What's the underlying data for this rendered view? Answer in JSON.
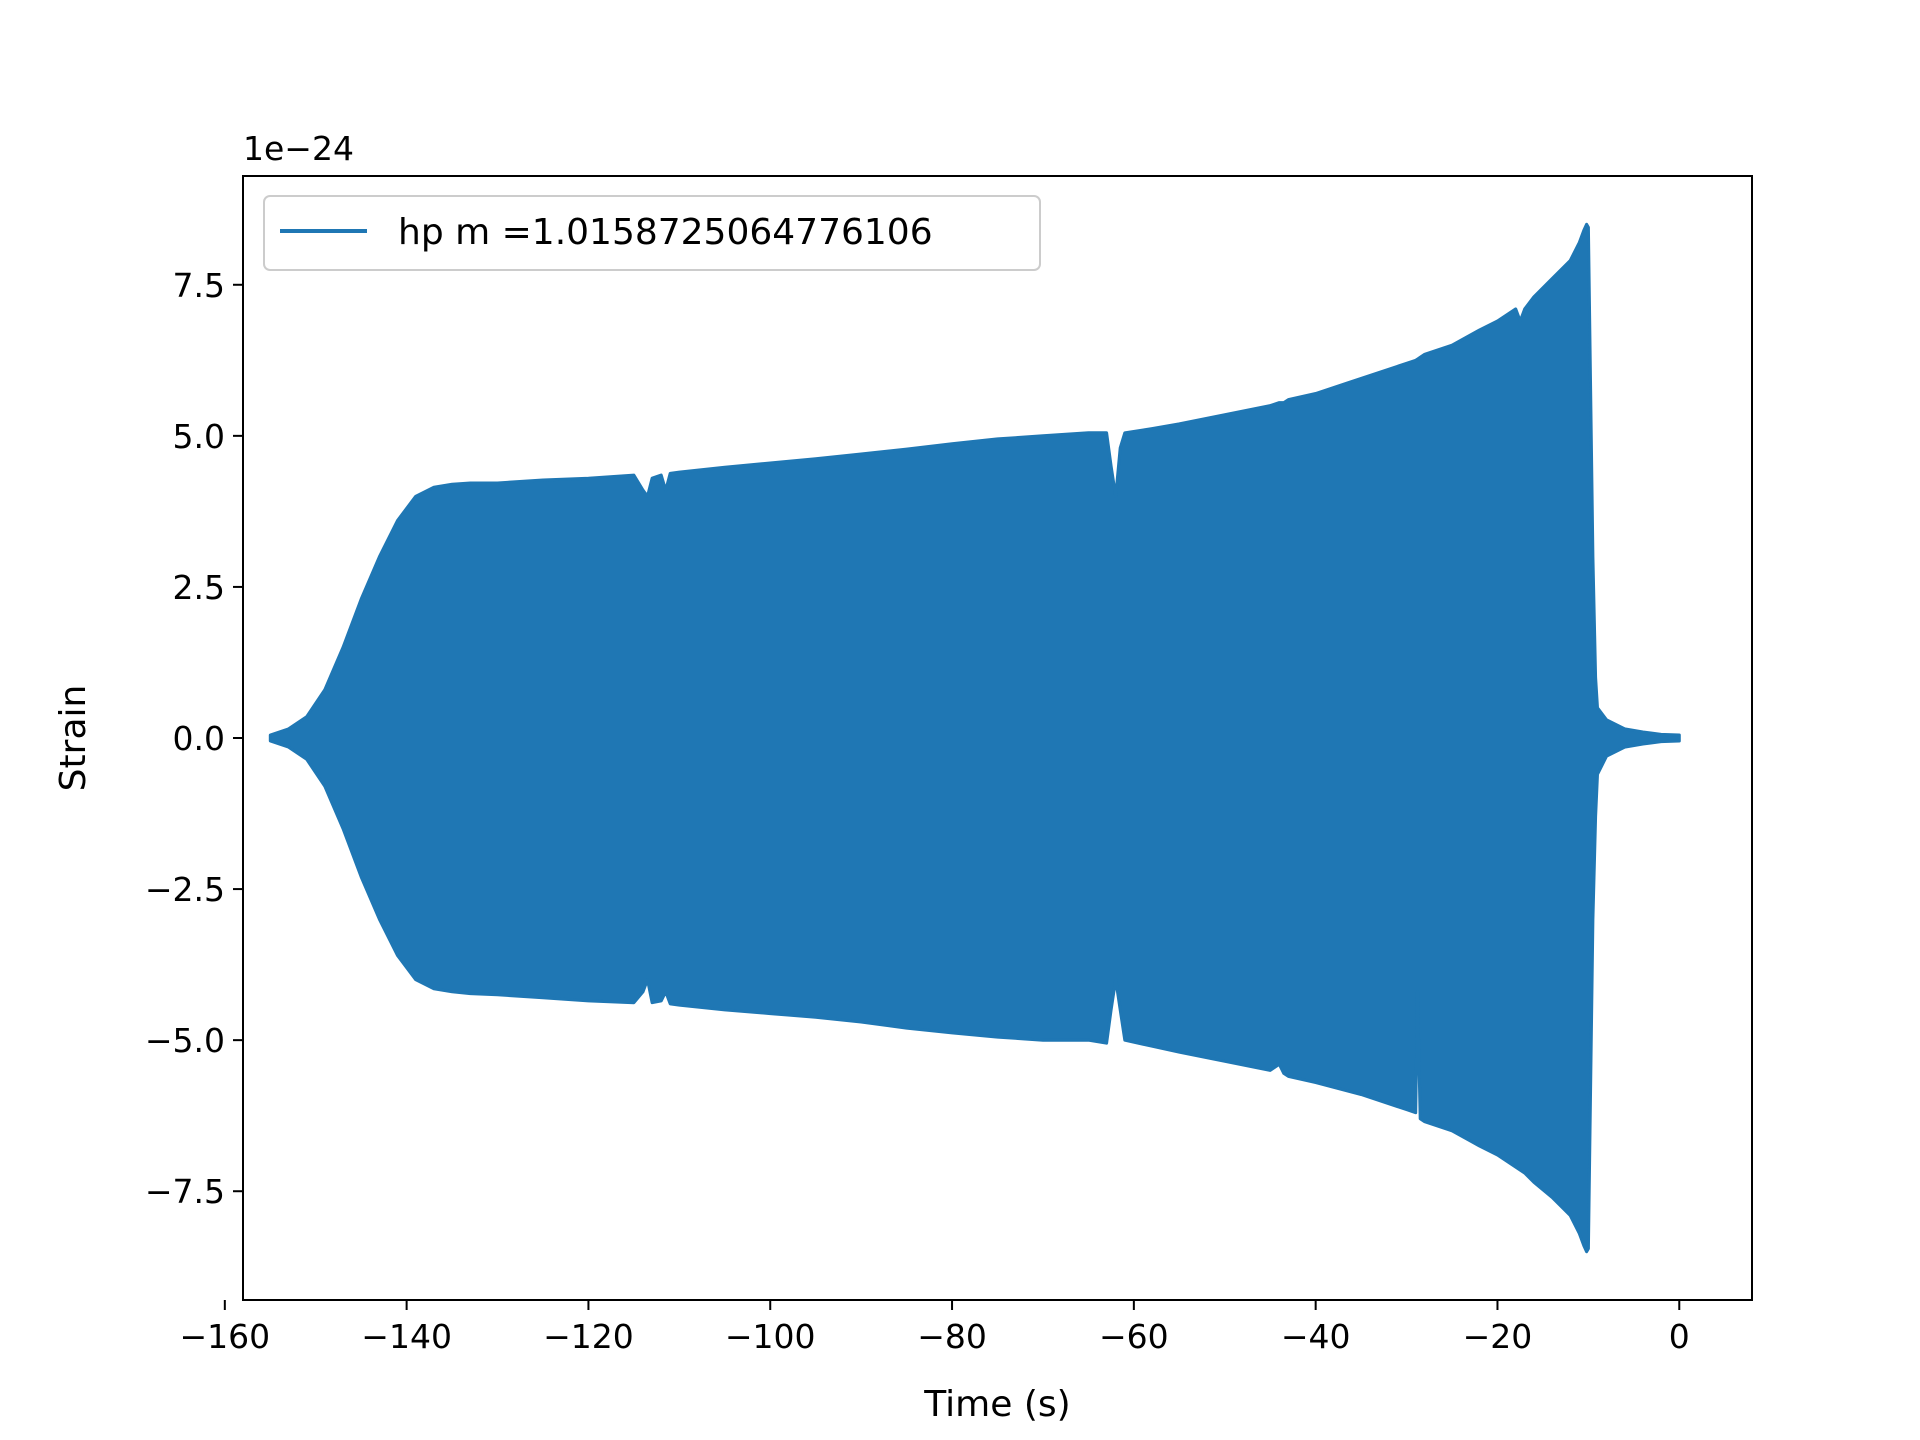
{
  "chart_data": {
    "type": "area",
    "title": "",
    "xlabel": "Time (s)",
    "ylabel": "Strain",
    "y_offset_label": "1e−24",
    "xlim": [
      -158.0,
      8.0
    ],
    "ylim": [
      -9.3,
      9.3
    ],
    "x_ticks": [
      -160,
      -140,
      -120,
      -100,
      -80,
      -60,
      -40,
      -20,
      0
    ],
    "x_tick_labels": [
      "−160",
      "−140",
      "−120",
      "−100",
      "−80",
      "−60",
      "−40",
      "−20",
      "0"
    ],
    "y_ticks": [
      -7.5,
      -5.0,
      -2.5,
      0.0,
      2.5,
      5.0,
      7.5
    ],
    "y_tick_labels": [
      "−7.5",
      "−5.0",
      "−2.5",
      "0.0",
      "2.5",
      "5.0",
      "7.5"
    ],
    "grid": false,
    "legend_position": "top-left",
    "series": [
      {
        "name": "hp m =1.0158725064776106",
        "color": "#1f77b4",
        "envelope_x": [
          -155,
          -153,
          -151,
          -149,
          -147,
          -145,
          -143,
          -141,
          -139,
          -137,
          -135,
          -133,
          -130,
          -125,
          -120,
          -115,
          -114,
          -113.5,
          -113,
          -112,
          -111.5,
          -111,
          -110,
          -105,
          -100,
          -95,
          -90,
          -85,
          -80,
          -75,
          -70,
          -65,
          -63,
          -62.5,
          -62,
          -61.5,
          -61,
          -58,
          -55,
          -50,
          -45,
          -44,
          -43.5,
          -43,
          -40,
          -35,
          -30,
          -29,
          -28.8,
          -28.5,
          -28,
          -25,
          -22,
          -20,
          -18,
          -17.5,
          -17,
          -16,
          -14,
          -12,
          -11,
          -10.5,
          -10.2,
          -10,
          -9.5,
          -9.2,
          -9,
          -8,
          -6,
          -4,
          -2,
          0
        ],
        "upper": [
          0.05,
          0.15,
          0.35,
          0.8,
          1.5,
          2.3,
          3.0,
          3.6,
          4.0,
          4.15,
          4.2,
          4.22,
          4.22,
          4.27,
          4.3,
          4.35,
          4.1,
          4.0,
          4.3,
          4.35,
          4.1,
          4.38,
          4.4,
          4.48,
          4.55,
          4.62,
          4.7,
          4.78,
          4.87,
          4.95,
          5.0,
          5.05,
          5.05,
          4.5,
          4.0,
          4.8,
          5.05,
          5.12,
          5.2,
          5.35,
          5.5,
          5.55,
          5.55,
          5.6,
          5.7,
          5.95,
          6.2,
          6.25,
          6.27,
          6.3,
          6.35,
          6.5,
          6.75,
          6.9,
          7.1,
          6.9,
          7.1,
          7.3,
          7.6,
          7.9,
          8.2,
          8.4,
          8.5,
          8.45,
          3.0,
          1.0,
          0.5,
          0.3,
          0.15,
          0.1,
          0.06,
          0.05
        ],
        "lower": [
          -0.05,
          -0.15,
          -0.35,
          -0.8,
          -1.5,
          -2.3,
          -3.0,
          -3.6,
          -4.0,
          -4.15,
          -4.2,
          -4.23,
          -4.25,
          -4.3,
          -4.35,
          -4.38,
          -4.2,
          -4.0,
          -4.38,
          -4.35,
          -4.2,
          -4.4,
          -4.42,
          -4.5,
          -4.56,
          -4.62,
          -4.7,
          -4.8,
          -4.88,
          -4.95,
          -5.0,
          -5.0,
          -5.05,
          -4.5,
          -4.0,
          -4.5,
          -5.0,
          -5.1,
          -5.2,
          -5.35,
          -5.5,
          -5.4,
          -5.55,
          -5.6,
          -5.7,
          -5.9,
          -6.15,
          -6.2,
          -4.2,
          -6.3,
          -6.35,
          -6.5,
          -6.75,
          -6.9,
          -7.1,
          -7.15,
          -7.2,
          -7.35,
          -7.6,
          -7.9,
          -8.2,
          -8.4,
          -8.5,
          -8.45,
          -3.0,
          -1.3,
          -0.6,
          -0.3,
          -0.15,
          -0.1,
          -0.06,
          -0.05
        ]
      }
    ]
  }
}
